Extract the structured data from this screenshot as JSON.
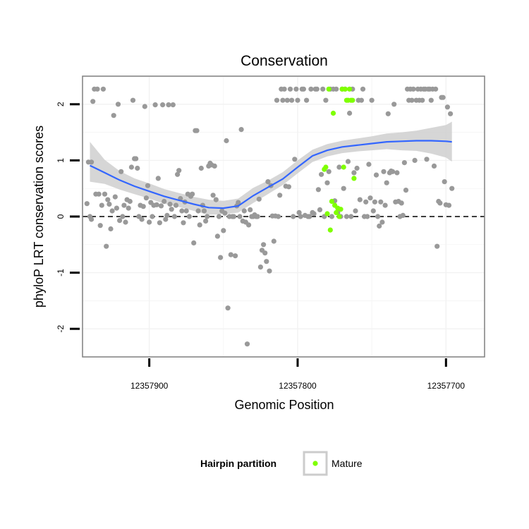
{
  "chart_data": {
    "type": "scatter",
    "title": "Conservation",
    "xlabel": "Genomic Position",
    "ylabel": "phyloP LRT conservation scores",
    "x_reversed": true,
    "xlim": [
      12357945,
      12357674
    ],
    "ylim": [
      -2.5,
      2.5
    ],
    "x_ticks": [
      12357900,
      12357800,
      12357700
    ],
    "x_tick_labels": [
      "12357900",
      "12357800",
      "12357700"
    ],
    "y_ticks": [
      -2,
      -1,
      0,
      1,
      2
    ],
    "y_tick_labels": [
      "-2",
      "-1",
      "0",
      "1",
      "2"
    ],
    "reference_line": {
      "y": 0,
      "style": "dashed"
    },
    "grid": true,
    "legend": {
      "title": "Hairpin partition",
      "placement": "bottom",
      "entries": [
        "Mature"
      ]
    },
    "colors": {
      "other": "#999999",
      "mature": "#7fff00",
      "smooth": "#3366ff",
      "ribbon": "#cccccc"
    },
    "series": [
      {
        "name": "",
        "color": "#999999",
        "points": [
          [
            12357942,
            0.23
          ],
          [
            12357941,
            0.97
          ],
          [
            12357940,
            0.0
          ],
          [
            12357939,
            0.97
          ],
          [
            12357939,
            -0.05
          ],
          [
            12357938,
            2.05
          ],
          [
            12357937,
            2.27
          ],
          [
            12357936,
            0.4
          ],
          [
            12357935,
            2.27
          ],
          [
            12357934,
            0.4
          ],
          [
            12357933,
            -0.16
          ],
          [
            12357932,
            0.2
          ],
          [
            12357931,
            2.27
          ],
          [
            12357930,
            0.4
          ],
          [
            12357929,
            -0.53
          ],
          [
            12357928,
            0.3
          ],
          [
            12357927,
            0.22
          ],
          [
            12357926,
            -0.22
          ],
          [
            12357925,
            0.1
          ],
          [
            12357924,
            1.8
          ],
          [
            12357923,
            0.35
          ],
          [
            12357922,
            0.15
          ],
          [
            12357921,
            2.0
          ],
          [
            12357920,
            -0.07
          ],
          [
            12357919,
            0.8
          ],
          [
            12357918,
            0.0
          ],
          [
            12357917,
            0.2
          ],
          [
            12357916,
            -0.1
          ],
          [
            12357915,
            0.3
          ],
          [
            12357914,
            0.15
          ],
          [
            12357913,
            0.27
          ],
          [
            12357912,
            0.88
          ],
          [
            12357911,
            2.07
          ],
          [
            12357910,
            1.03
          ],
          [
            12357909,
            1.03
          ],
          [
            12357908,
            0.86
          ],
          [
            12357907,
            0.0
          ],
          [
            12357906,
            0.2
          ],
          [
            12357905,
            -0.05
          ],
          [
            12357904,
            0.18
          ],
          [
            12357903,
            1.96
          ],
          [
            12357902,
            0.33
          ],
          [
            12357901,
            0.55
          ],
          [
            12357900,
            -0.1
          ],
          [
            12357899,
            0.25
          ],
          [
            12357898,
            0.0
          ],
          [
            12357897,
            0.2
          ],
          [
            12357896,
            1.99
          ],
          [
            12357895,
            0.21
          ],
          [
            12357894,
            0.68
          ],
          [
            12357893,
            -0.11
          ],
          [
            12357892,
            0.19
          ],
          [
            12357891,
            1.99
          ],
          [
            12357890,
            0.27
          ],
          [
            12357889,
            -0.05
          ],
          [
            12357888,
            0.02
          ],
          [
            12357887,
            1.99
          ],
          [
            12357886,
            0.22
          ],
          [
            12357885,
            0.13
          ],
          [
            12357884,
            1.99
          ],
          [
            12357883,
            0.0
          ],
          [
            12357882,
            0.2
          ],
          [
            12357881,
            0.75
          ],
          [
            12357880,
            0.82
          ],
          [
            12357879,
            0.32
          ],
          [
            12357878,
            0.1
          ],
          [
            12357877,
            -0.11
          ],
          [
            12357876,
            0.26
          ],
          [
            12357875,
            0.1
          ],
          [
            12357874,
            0.4
          ],
          [
            12357873,
            0.0
          ],
          [
            12357872,
            0.36
          ],
          [
            12357871,
            0.4
          ],
          [
            12357870,
            -0.47
          ],
          [
            12357869,
            1.53
          ],
          [
            12357868,
            1.53
          ],
          [
            12357867,
            0.1
          ],
          [
            12357866,
            -0.15
          ],
          [
            12357865,
            0.86
          ],
          [
            12357864,
            0.2
          ],
          [
            12357863,
            0.1
          ],
          [
            12357862,
            -0.08
          ],
          [
            12357861,
            0.0
          ],
          [
            12357860,
            0.9
          ],
          [
            12357859,
            0.95
          ],
          [
            12357858,
            0.92
          ],
          [
            12357857,
            0.38
          ],
          [
            12357856,
            0.9
          ],
          [
            12357855,
            0.3
          ],
          [
            12357854,
            -0.35
          ],
          [
            12357853,
            0.0
          ],
          [
            12357852,
            -0.73
          ],
          [
            12357851,
            0.1
          ],
          [
            12357850,
            -0.25
          ],
          [
            12357849,
            0.06
          ],
          [
            12357848,
            1.35
          ],
          [
            12357847,
            -1.63
          ],
          [
            12357846,
            0.0
          ],
          [
            12357845,
            -0.68
          ],
          [
            12357844,
            0.0
          ],
          [
            12357843,
            0.0
          ],
          [
            12357842,
            -0.7
          ],
          [
            12357841,
            0.19
          ],
          [
            12357840,
            0.25
          ],
          [
            12357839,
            0.0
          ],
          [
            12357838,
            1.55
          ],
          [
            12357837,
            -0.08
          ],
          [
            12357836,
            0.1
          ],
          [
            12357835,
            -0.1
          ],
          [
            12357834,
            -2.27
          ],
          [
            12357833,
            -0.15
          ],
          [
            12357832,
            0.12
          ],
          [
            12357831,
            0.0
          ],
          [
            12357830,
            0.0
          ],
          [
            12357829,
            0.03
          ],
          [
            12357828,
            0.0
          ],
          [
            12357827,
            0.0
          ],
          [
            12357826,
            0.31
          ],
          [
            12357825,
            -0.9
          ],
          [
            12357824,
            -0.6
          ],
          [
            12357823,
            -0.5
          ],
          [
            12357822,
            -0.65
          ],
          [
            12357821,
            -0.8
          ],
          [
            12357820,
            0.62
          ],
          [
            12357819,
            -0.97
          ],
          [
            12357818,
            0.55
          ],
          [
            12357817,
            0.01
          ],
          [
            12357816,
            -0.44
          ],
          [
            12357815,
            0.01
          ],
          [
            12357814,
            2.07
          ],
          [
            12357813,
            0.0
          ],
          [
            12357812,
            0.38
          ],
          [
            12357811,
            2.27
          ],
          [
            12357810,
            2.07
          ],
          [
            12357809,
            2.27
          ],
          [
            12357808,
            0.54
          ],
          [
            12357807,
            2.07
          ],
          [
            12357806,
            0.53
          ],
          [
            12357805,
            2.27
          ],
          [
            12357804,
            2.07
          ],
          [
            12357803,
            0.0
          ],
          [
            12357802,
            1.02
          ],
          [
            12357801,
            2.27
          ],
          [
            12357800,
            2.07
          ],
          [
            12357799,
            0.07
          ],
          [
            12357798,
            0.0
          ],
          [
            12357797,
            2.27
          ],
          [
            12357796,
            2.27
          ],
          [
            12357795,
            0.02
          ],
          [
            12357794,
            2.07
          ],
          [
            12357793,
            0.0
          ],
          [
            12357792,
            0.0
          ],
          [
            12357791,
            2.27
          ],
          [
            12357790,
            0.07
          ],
          [
            12357789,
            0.05
          ],
          [
            12357788,
            2.27
          ],
          [
            12357787,
            2.27
          ],
          [
            12357786,
            0.48
          ],
          [
            12357785,
            0.12
          ],
          [
            12357784,
            0.75
          ],
          [
            12357783,
            2.27
          ],
          [
            12357782,
            0.0
          ],
          [
            12357781,
            2.07
          ],
          [
            12357780,
            0.6
          ],
          [
            12357779,
            0.8
          ],
          [
            12357778,
            2.27
          ],
          [
            12357777,
            0.0
          ],
          [
            12357776,
            2.27
          ],
          [
            12357775,
            0.28
          ],
          [
            12357774,
            2.27
          ],
          [
            12357773,
            0.07
          ],
          [
            12357772,
            0.88
          ],
          [
            12357771,
            0.0
          ],
          [
            12357770,
            2.27
          ],
          [
            12357769,
            0.5
          ],
          [
            12357768,
            2.27
          ],
          [
            12357767,
            0.0
          ],
          [
            12357766,
            0.98
          ],
          [
            12357765,
            1.84
          ],
          [
            12357764,
            0.0
          ],
          [
            12357763,
            2.27
          ],
          [
            12357762,
            0.78
          ],
          [
            12357761,
            0.1
          ],
          [
            12357760,
            0.86
          ],
          [
            12357759,
            2.07
          ],
          [
            12357758,
            0.3
          ],
          [
            12357757,
            2.07
          ],
          [
            12357756,
            2.27
          ],
          [
            12357755,
            0.0
          ],
          [
            12357754,
            0.26
          ],
          [
            12357753,
            0.0
          ],
          [
            12357752,
            0.93
          ],
          [
            12357751,
            0.33
          ],
          [
            12357750,
            2.07
          ],
          [
            12357749,
            0.1
          ],
          [
            12357748,
            0.26
          ],
          [
            12357747,
            0.74
          ],
          [
            12357746,
            0.0
          ],
          [
            12357745,
            -0.17
          ],
          [
            12357744,
            0.26
          ],
          [
            12357743,
            -0.1
          ],
          [
            12357742,
            0.8
          ],
          [
            12357741,
            0.2
          ],
          [
            12357740,
            0.6
          ],
          [
            12357739,
            1.83
          ],
          [
            12357738,
            0.78
          ],
          [
            12357737,
            0.81
          ],
          [
            12357736,
            0.8
          ],
          [
            12357735,
            2.0
          ],
          [
            12357734,
            0.26
          ],
          [
            12357733,
            0.78
          ],
          [
            12357732,
            0.27
          ],
          [
            12357731,
            0.0
          ],
          [
            12357730,
            0.24
          ],
          [
            12357729,
            0.02
          ],
          [
            12357728,
            0.96
          ],
          [
            12357727,
            0.47
          ],
          [
            12357726,
            2.27
          ],
          [
            12357725,
            2.07
          ],
          [
            12357724,
            2.27
          ],
          [
            12357723,
            2.07
          ],
          [
            12357722,
            2.27
          ],
          [
            12357721,
            1.0
          ],
          [
            12357720,
            2.07
          ],
          [
            12357719,
            2.27
          ],
          [
            12357718,
            2.07
          ],
          [
            12357717,
            2.27
          ],
          [
            12357716,
            2.07
          ],
          [
            12357715,
            2.27
          ],
          [
            12357714,
            2.27
          ],
          [
            12357713,
            1.02
          ],
          [
            12357712,
            2.27
          ],
          [
            12357711,
            2.27
          ],
          [
            12357710,
            2.07
          ],
          [
            12357709,
            2.27
          ],
          [
            12357708,
            0.9
          ],
          [
            12357707,
            2.27
          ],
          [
            12357706,
            -0.53
          ],
          [
            12357705,
            0.27
          ],
          [
            12357704,
            0.24
          ],
          [
            12357703,
            2.12
          ],
          [
            12357702,
            2.12
          ],
          [
            12357701,
            0.62
          ],
          [
            12357700,
            0.21
          ],
          [
            12357699,
            1.95
          ],
          [
            12357698,
            0.2
          ],
          [
            12357697,
            1.83
          ],
          [
            12357696,
            0.5
          ]
        ]
      },
      {
        "name": "Mature",
        "color": "#7fff00",
        "points": [
          [
            12357782,
            0.84
          ],
          [
            12357781,
            0.88
          ],
          [
            12357780,
            0.05
          ],
          [
            12357779,
            2.27
          ],
          [
            12357778,
            -0.24
          ],
          [
            12357777,
            0.27
          ],
          [
            12357776,
            1.84
          ],
          [
            12357775,
            0.2
          ],
          [
            12357774,
            0.07
          ],
          [
            12357773,
            0.15
          ],
          [
            12357772,
            0.0
          ],
          [
            12357771,
            0.13
          ],
          [
            12357770,
            2.27
          ],
          [
            12357769,
            0.88
          ],
          [
            12357768,
            2.27
          ],
          [
            12357767,
            2.07
          ],
          [
            12357766,
            2.07
          ],
          [
            12357765,
            2.27
          ],
          [
            12357764,
            2.07
          ],
          [
            12357763,
            2.07
          ],
          [
            12357762,
            0.68
          ]
        ]
      }
    ],
    "smooth": {
      "x": [
        12357940,
        12357930,
        12357920,
        12357910,
        12357900,
        12357890,
        12357880,
        12357870,
        12357860,
        12357850,
        12357840,
        12357830,
        12357820,
        12357810,
        12357800,
        12357790,
        12357780,
        12357770,
        12357760,
        12357750,
        12357740,
        12357730,
        12357720,
        12357710,
        12357700,
        12357696
      ],
      "y": [
        0.91,
        0.78,
        0.65,
        0.54,
        0.45,
        0.36,
        0.29,
        0.22,
        0.16,
        0.15,
        0.19,
        0.37,
        0.52,
        0.67,
        0.88,
        1.08,
        1.18,
        1.24,
        1.27,
        1.3,
        1.33,
        1.34,
        1.35,
        1.35,
        1.34,
        1.33
      ],
      "lower": [
        0.62,
        0.58,
        0.48,
        0.4,
        0.32,
        0.23,
        0.17,
        0.1,
        0.03,
        0.04,
        0.07,
        0.24,
        0.4,
        0.56,
        0.77,
        0.97,
        1.07,
        1.13,
        1.16,
        1.18,
        1.2,
        1.18,
        1.17,
        1.12,
        1.05,
        0.98
      ],
      "upper": [
        1.33,
        1.01,
        0.81,
        0.68,
        0.59,
        0.49,
        0.42,
        0.35,
        0.3,
        0.28,
        0.32,
        0.51,
        0.64,
        0.79,
        1.0,
        1.19,
        1.29,
        1.35,
        1.39,
        1.43,
        1.48,
        1.5,
        1.53,
        1.58,
        1.63,
        1.69
      ]
    }
  }
}
